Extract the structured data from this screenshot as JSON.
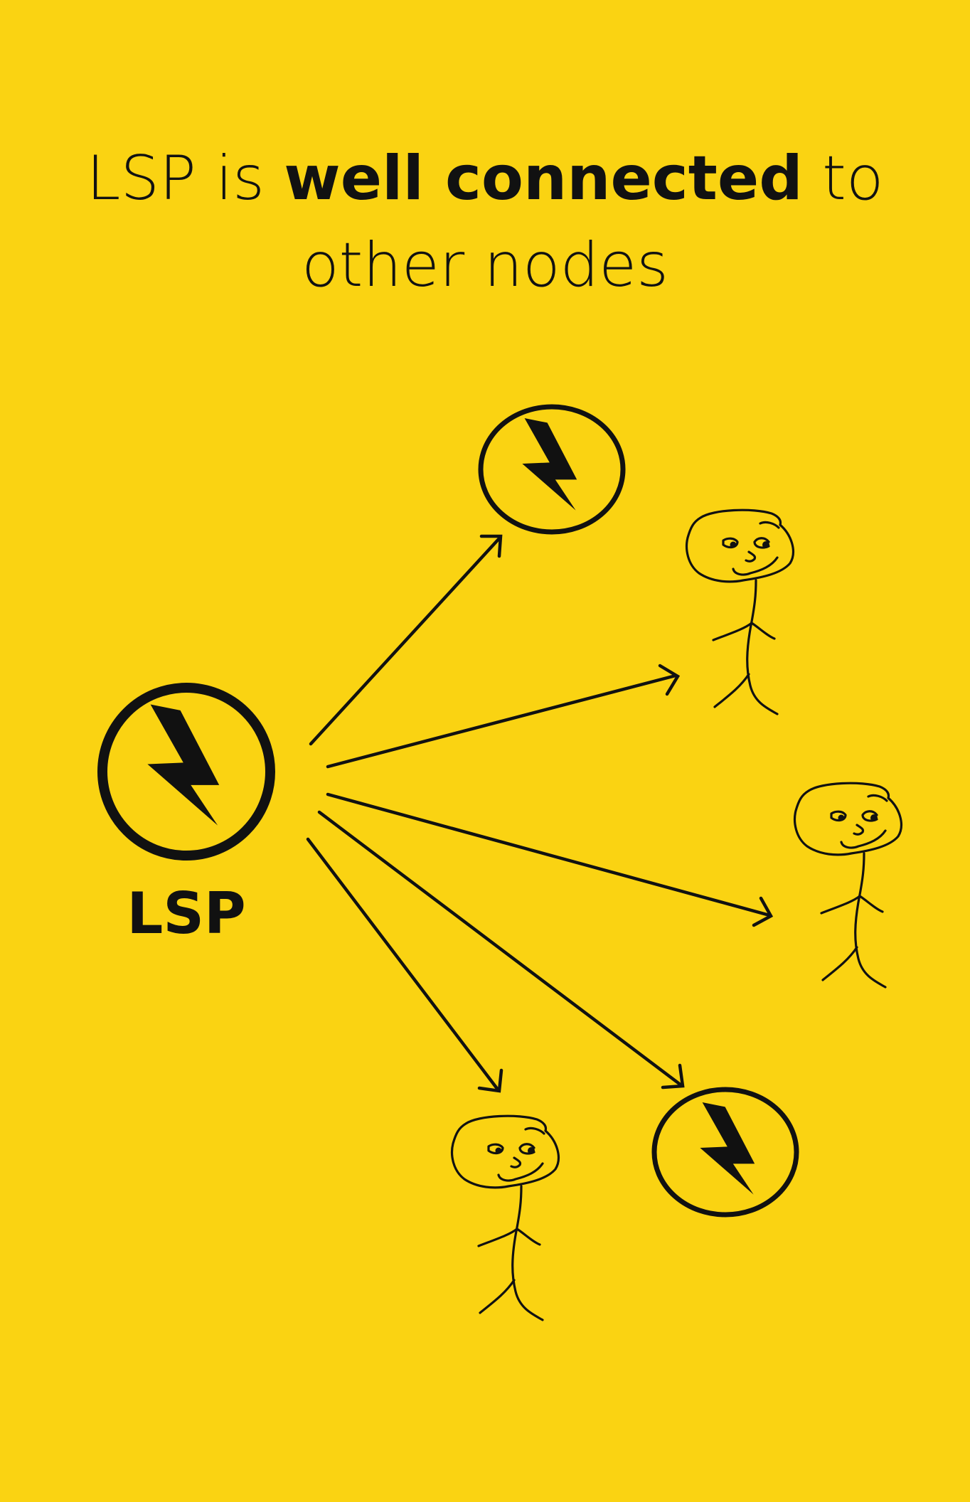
{
  "title": {
    "line1_prefix": "LSP is",
    "line1_bold": "well connected",
    "line1_suffix": "to",
    "line2": "other nodes"
  },
  "hub": {
    "label": "LSP",
    "icon": "lightning-bolt-icon"
  },
  "nodes": [
    {
      "kind": "lightning-node",
      "icon": "lightning-bolt-icon"
    },
    {
      "kind": "person",
      "icon": "stick-figure-icon"
    },
    {
      "kind": "person",
      "icon": "stick-figure-icon"
    },
    {
      "kind": "lightning-node",
      "icon": "lightning-bolt-icon"
    },
    {
      "kind": "person",
      "icon": "stick-figure-icon"
    }
  ],
  "colors": {
    "background": "#FAD312",
    "ink": "#111111"
  }
}
